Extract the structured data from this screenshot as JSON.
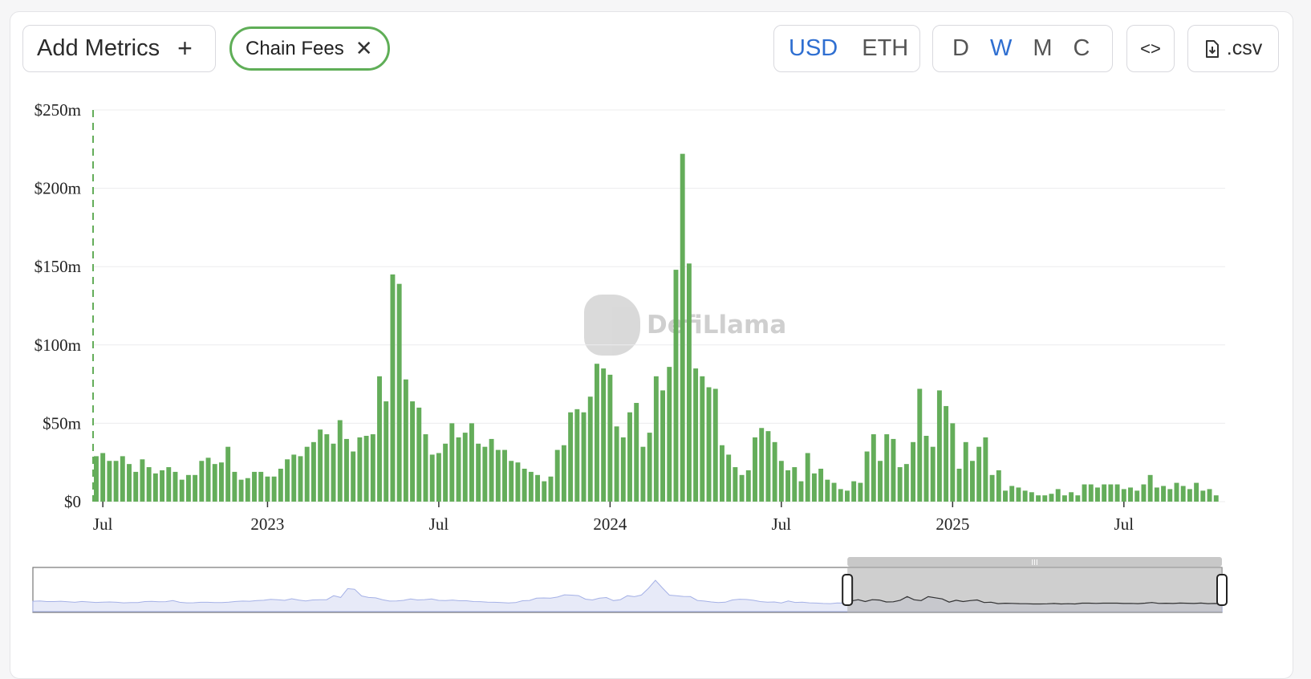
{
  "toolbar": {
    "add_metrics_label": "Add Metrics",
    "add_icon": "plus-icon",
    "active_metric": "Chain Fees",
    "remove_icon": "close-icon",
    "currency_options": [
      "USD",
      "ETH"
    ],
    "currency_selected": "USD",
    "period_options": [
      "D",
      "W",
      "M",
      "C"
    ],
    "period_selected": "W",
    "embed_icon": "code-icon",
    "download_icon": "file-download-icon",
    "csv_label": ".csv"
  },
  "watermark": {
    "text": "DefiLlama"
  },
  "colors": {
    "bar": "#64ad5a",
    "accent": "#2f6fd1",
    "brush_fill": "#b5b5b5",
    "preview_line": "#a5b1e6"
  },
  "chart_data": {
    "type": "bar",
    "title": "",
    "xlabel": "",
    "ylabel": "",
    "series": [
      {
        "name": "Chain Fees",
        "values": [
          29,
          31,
          26,
          26,
          29,
          24,
          19,
          27,
          22,
          18,
          20,
          22,
          19,
          14,
          17,
          17,
          26,
          28,
          24,
          25,
          35,
          19,
          14,
          15,
          19,
          19,
          16,
          16,
          21,
          27,
          30,
          29,
          35,
          38,
          46,
          43,
          37,
          52,
          40,
          32,
          41,
          42,
          43,
          80,
          64,
          145,
          139,
          78,
          64,
          60,
          43,
          30,
          31,
          37,
          50,
          41,
          44,
          50,
          37,
          35,
          40,
          33,
          33,
          26,
          25,
          21,
          19,
          17,
          13,
          16,
          33,
          36,
          57,
          59,
          57,
          67,
          88,
          85,
          81,
          48,
          41,
          57,
          63,
          35,
          44,
          80,
          71,
          86,
          148,
          222,
          152,
          85,
          80,
          73,
          72,
          36,
          30,
          22,
          17,
          20,
          41,
          47,
          45,
          38,
          26,
          20,
          22,
          13,
          31,
          18,
          21,
          14,
          12,
          8,
          7,
          13,
          12,
          32,
          43,
          26,
          43,
          40,
          22,
          24,
          38,
          72,
          42,
          35,
          71,
          61,
          50,
          21,
          38,
          26,
          35,
          41,
          17,
          20,
          7,
          10,
          9,
          7,
          6,
          4,
          4,
          5,
          8,
          4,
          6,
          4,
          11,
          11,
          9,
          11,
          11,
          11,
          8,
          9,
          7,
          11,
          17,
          9,
          10,
          8,
          12,
          10,
          8,
          12,
          7,
          8,
          4
        ]
      }
    ],
    "y_ticks": [
      "$0",
      "$50m",
      "$100m",
      "$150m",
      "$200m",
      "$250m"
    ],
    "y_tick_values": [
      0,
      50,
      100,
      150,
      200,
      250
    ],
    "ylim": [
      0,
      250
    ],
    "x_ticks": [
      {
        "label": "Jul",
        "index": 1
      },
      {
        "label": "2023",
        "index": 26
      },
      {
        "label": "Jul",
        "index": 52
      },
      {
        "label": "2024",
        "index": 78
      },
      {
        "label": "Jul",
        "index": 104
      },
      {
        "label": "2025",
        "index": 130
      },
      {
        "label": "Jul",
        "index": 156
      }
    ],
    "grid": true,
    "legend": "none",
    "brush_selected_range": [
      0.685,
      1.0
    ]
  }
}
